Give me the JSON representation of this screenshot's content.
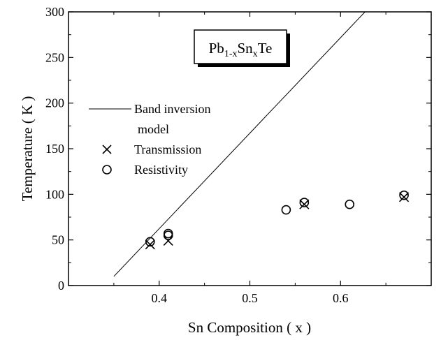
{
  "chart_data": {
    "type": "scatter",
    "xlabel": "Sn Composition ( x )",
    "ylabel": "Temperature ( K )",
    "xlim": [
      0.3,
      0.7
    ],
    "ylim": [
      0,
      300
    ],
    "xticks": [
      "0.4",
      "0.5",
      "0.6"
    ],
    "yticks": [
      "0",
      "50",
      "100",
      "150",
      "200",
      "250",
      "300"
    ],
    "grid": false,
    "legend_placement": "left-middle",
    "formula": {
      "base1": "Pb",
      "sub1": "1-x",
      "base2": "Sn",
      "sub2": "x",
      "base3": "Te"
    },
    "legend": {
      "line_label_1": "Band inversion",
      "line_label_2": "model",
      "cross_label": "Transmission",
      "circle_label": "Resistivity"
    },
    "series": [
      {
        "name": "Band inversion model",
        "kind": "line",
        "x": [
          0.35,
          0.627
        ],
        "y": [
          10,
          300
        ]
      },
      {
        "name": "Transmission",
        "kind": "cross",
        "x": [
          0.39,
          0.41,
          0.56,
          0.67
        ],
        "y": [
          45,
          49,
          89,
          97
        ]
      },
      {
        "name": "Resistivity",
        "kind": "circle",
        "x": [
          0.39,
          0.41,
          0.41,
          0.54,
          0.56,
          0.61,
          0.67
        ],
        "y": [
          48,
          55,
          57,
          83,
          91,
          89,
          99
        ]
      }
    ]
  }
}
